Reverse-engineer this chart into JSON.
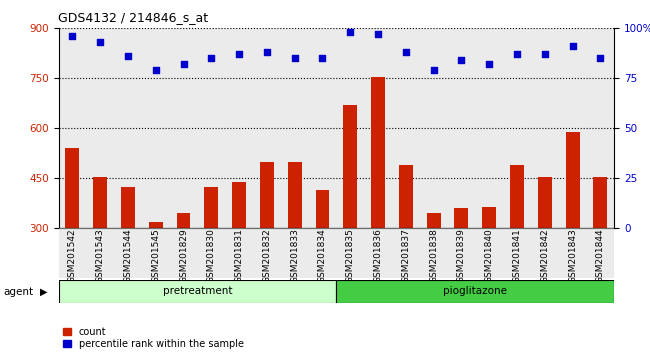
{
  "title": "GDS4132 / 214846_s_at",
  "samples": [
    "GSM201542",
    "GSM201543",
    "GSM201544",
    "GSM201545",
    "GSM201829",
    "GSM201830",
    "GSM201831",
    "GSM201832",
    "GSM201833",
    "GSM201834",
    "GSM201835",
    "GSM201836",
    "GSM201837",
    "GSM201838",
    "GSM201839",
    "GSM201840",
    "GSM201841",
    "GSM201842",
    "GSM201843",
    "GSM201844"
  ],
  "counts": [
    540,
    455,
    425,
    320,
    345,
    425,
    440,
    500,
    500,
    415,
    670,
    755,
    490,
    345,
    360,
    365,
    490,
    455,
    590,
    455
  ],
  "percentile_ranks": [
    96,
    93,
    86,
    79,
    82,
    85,
    87,
    88,
    85,
    85,
    98,
    97,
    88,
    79,
    84,
    82,
    87,
    87,
    91,
    85
  ],
  "pretreatment_count": 10,
  "pioglitazone_count": 10,
  "pretreatment_label": "pretreatment",
  "pioglitazone_label": "pioglitazone",
  "agent_label": "agent",
  "ylim_left": [
    300,
    900
  ],
  "ylim_right": [
    0,
    100
  ],
  "yticks_left": [
    300,
    450,
    600,
    750,
    900
  ],
  "yticks_right": [
    0,
    25,
    50,
    75,
    100
  ],
  "bar_color": "#cc2200",
  "dot_color": "#0000cc",
  "pretreatment_color": "#ccffcc",
  "pioglitazone_color": "#44cc44",
  "legend_count_label": "count",
  "legend_pct_label": "percentile rank within the sample",
  "bar_width": 0.5,
  "col_bg_color": "#d8d8d8"
}
